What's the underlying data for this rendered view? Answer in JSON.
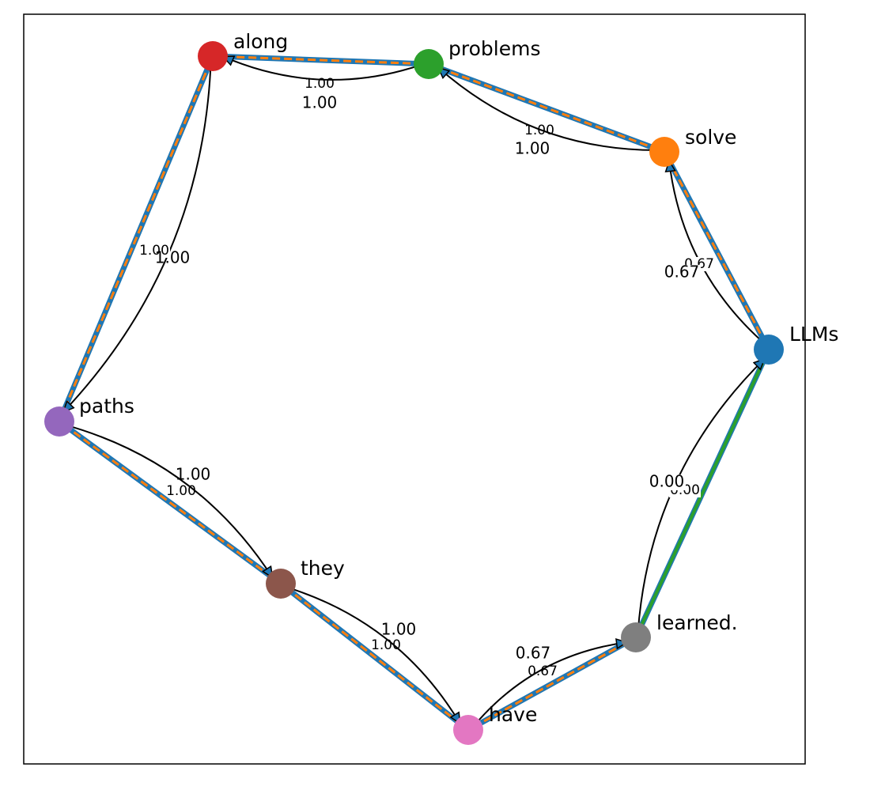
{
  "colors": {
    "frame": "#000000",
    "edge_black": "#000000",
    "band_blue": "#1f77b4",
    "band_orange": "#ff7f0e",
    "band_green": "#2ca02c",
    "label_bg": "#ffffff"
  },
  "nodes": [
    {
      "id": "llms",
      "label": "LLMs",
      "color": "#1f77b4"
    },
    {
      "id": "solve",
      "label": "solve",
      "color": "#ff7f0e"
    },
    {
      "id": "problems",
      "label": "problems",
      "color": "#2ca02c"
    },
    {
      "id": "along",
      "label": "along",
      "color": "#d62728"
    },
    {
      "id": "paths",
      "label": "paths",
      "color": "#9467bd"
    },
    {
      "id": "they",
      "label": "they",
      "color": "#8c564b"
    },
    {
      "id": "have",
      "label": "have",
      "color": "#e377c2"
    },
    {
      "id": "learned",
      "label": "learned.",
      "color": "#7f7f7f"
    }
  ],
  "edges": [
    {
      "id": "llms-solve",
      "from": "llms",
      "to": "solve",
      "weight_small": "0.67",
      "weight_large": "0.67",
      "band": "orange"
    },
    {
      "id": "solve-problems",
      "from": "solve",
      "to": "problems",
      "weight_small": "1.00",
      "weight_large": "1.00",
      "band": "orange"
    },
    {
      "id": "problems-along",
      "from": "problems",
      "to": "along",
      "weight_small": "1.00",
      "weight_large": "1.00",
      "band": "orange"
    },
    {
      "id": "along-paths",
      "from": "along",
      "to": "paths",
      "weight_small": "1.00",
      "weight_large": "1.00",
      "band": "orange"
    },
    {
      "id": "paths-they",
      "from": "paths",
      "to": "they",
      "weight_small": "1.00",
      "weight_large": "1.00",
      "band": "orange"
    },
    {
      "id": "they-have",
      "from": "they",
      "to": "have",
      "weight_small": "1.00",
      "weight_large": "1.00",
      "band": "orange"
    },
    {
      "id": "have-learned",
      "from": "have",
      "to": "learned",
      "weight_small": "0.67",
      "weight_large": "0.67",
      "band": "orange"
    },
    {
      "id": "learned-llms",
      "from": "learned",
      "to": "llms",
      "weight_small": "0.00",
      "weight_large": "0.00",
      "band": "green"
    }
  ]
}
